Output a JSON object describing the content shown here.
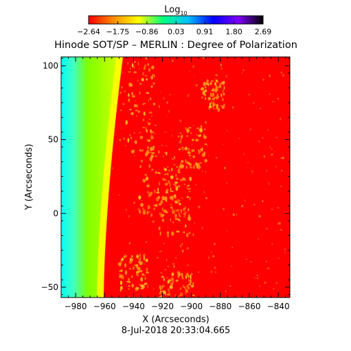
{
  "chart_data": {
    "type": "heatmap",
    "title": "Hinode SOT/SP – MERLIN : Degree of Polarization",
    "xlabel": "X (Arcseconds)",
    "ylabel": "Y (Arcseconds)",
    "xlim": [
      -990,
      -832
    ],
    "ylim": [
      -57,
      106
    ],
    "x_ticks": [
      -980,
      -960,
      -940,
      -920,
      -900,
      -880,
      -860,
      -840
    ],
    "x_tick_labels": [
      "−980",
      "−960",
      "−940",
      "−920",
      "−900",
      "−880",
      "−860",
      "−840"
    ],
    "y_ticks": [
      -50,
      0,
      50,
      100
    ],
    "y_tick_labels": [
      "−50",
      "0",
      "50",
      "100"
    ],
    "timestamp": "8-Jul-2018 20:33:04.665",
    "limb_x": -961,
    "colorbar": {
      "title_base": "Log",
      "title_subscript": "10",
      "range": [
        -2.64,
        2.69
      ],
      "ticks": [
        -2.64,
        -1.75,
        -0.86,
        0.03,
        0.91,
        1.8,
        2.69
      ],
      "tick_labels": [
        "−2.64",
        "−1.75",
        "−0.86",
        "0.03",
        "0.91",
        "1.80",
        "2.69"
      ],
      "colors": [
        "#ff0000",
        "#ff8c00",
        "#ffff00",
        "#00ff80",
        "#00bfff",
        "#0000ff",
        "#8000ff",
        "#000000"
      ]
    },
    "colors": {
      "disk": "#ff0000",
      "disk_bright": "#ff8c1a",
      "limb_band": "#ffff00",
      "off_limb": "#7fff00",
      "off_limb_edge": "#00ffff"
    }
  }
}
